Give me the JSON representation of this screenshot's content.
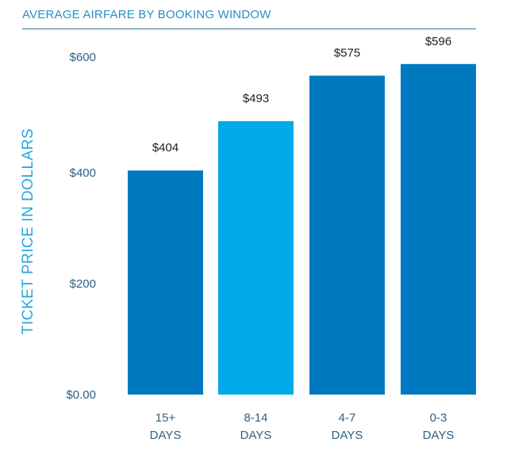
{
  "chart_data": {
    "type": "bar",
    "title": "AVERAGE AIRFARE BY BOOKING WINDOW",
    "xlabel": "",
    "ylabel": "TICKET PRICE IN DOLLARS",
    "ylim": [
      0,
      600
    ],
    "yticks": [
      {
        "value": 0,
        "label": "$0.00"
      },
      {
        "value": 200,
        "label": "$200"
      },
      {
        "value": 400,
        "label": "$400"
      },
      {
        "value": 600,
        "label": "$600"
      }
    ],
    "categories": [
      [
        "15+",
        "DAYS"
      ],
      [
        "8-14",
        "DAYS"
      ],
      [
        "4-7",
        "DAYS"
      ],
      [
        "0-3",
        "DAYS"
      ]
    ],
    "values": [
      404,
      493,
      575,
      596
    ],
    "value_labels": [
      "$404",
      "$493",
      "$575",
      "$596"
    ],
    "bar_colors": [
      "#0079c1",
      "#00a9e8",
      "#0079c1",
      "#0079c1"
    ],
    "grid": false,
    "legend": "none"
  }
}
